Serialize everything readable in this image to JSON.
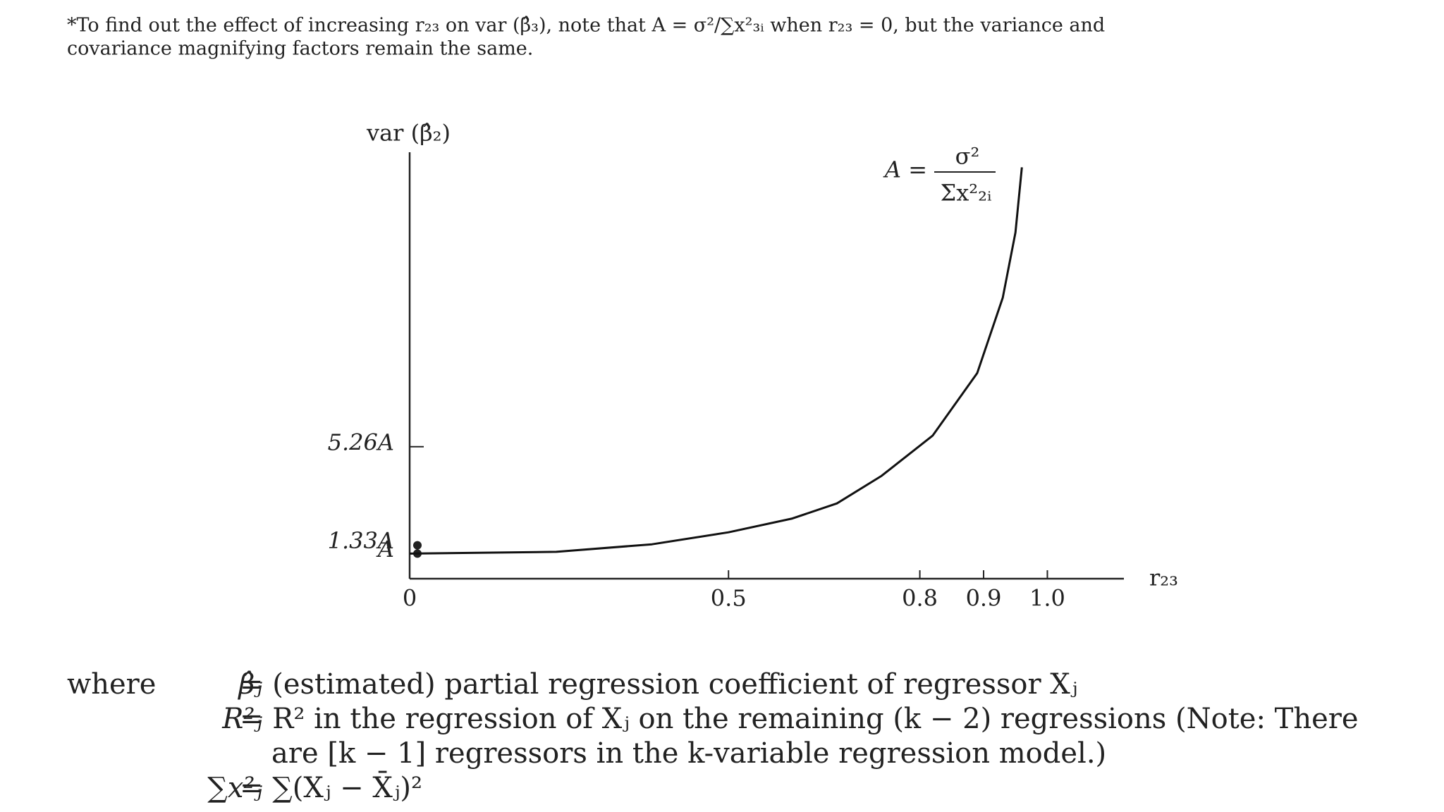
{
  "footnote": [
    "*To find out the effect of increasing r₂₃ on var (β̂₃), note that A = σ²/∑x²₃ᵢ when r₂₃ = 0, but the variance and",
    "covariance magnifying factors remain the same."
  ],
  "chart_data": {
    "type": "line",
    "y_label": "var (β̂₂)",
    "x_label": "r₂₃",
    "annotation": {
      "lhs": "A =",
      "numerator": "σ²",
      "denominator": "Σx²₂ᵢ"
    },
    "x": [
      0,
      0.23,
      0.38,
      0.5,
      0.6,
      0.67,
      0.74,
      0.82,
      0.89,
      0.93,
      0.95,
      0.96
    ],
    "values": [
      1,
      1.07,
      1.37,
      1.85,
      2.4,
      3.0,
      4.1,
      5.7,
      8.2,
      11.2,
      13.8,
      16.4
    ],
    "color": "#111111",
    "xlim": [
      0,
      1.12
    ],
    "ylim": [
      0,
      17
    ],
    "xticks": [
      0,
      0.5,
      0.8,
      0.9,
      {
        "value": 1,
        "label": "1.0"
      }
    ],
    "yticks": [
      {
        "value": 1,
        "label": "A"
      },
      {
        "value": 1.33,
        "label": "1.33A"
      },
      {
        "value": 5.26,
        "label": "5.26A"
      }
    ],
    "ytick_marks": [
      "dot",
      "dot",
      "line"
    ]
  },
  "definitions": {
    "lead": "where",
    "items": [
      {
        "symbol": "β̂ⱼ",
        "lines": [
          "= (estimated) partial regression coefficient of regressor Xⱼ"
        ]
      },
      {
        "symbol": "R²ⱼ",
        "lines": [
          "= R² in the regression of Xⱼ on the remaining (k − 2) regressions (Note: There",
          "are [k − 1] regressors in the k-variable regression model.)"
        ]
      },
      {
        "symbol": "∑x²ⱼ",
        "lines": [
          "= ∑(Xⱼ − X̄ⱼ)²"
        ]
      }
    ]
  }
}
